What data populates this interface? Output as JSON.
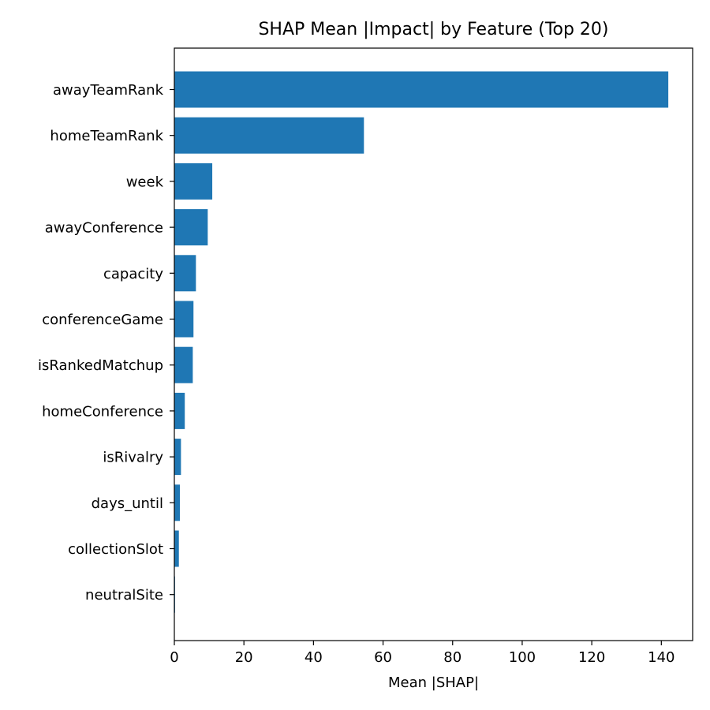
{
  "chart_data": {
    "type": "bar",
    "orientation": "horizontal",
    "title": "SHAP Mean |Impact| by Feature (Top 20)",
    "xlabel": "Mean |SHAP|",
    "ylabel": "",
    "categories": [
      "awayTeamRank",
      "homeTeamRank",
      "week",
      "awayConference",
      "capacity",
      "conferenceGame",
      "isRankedMatchup",
      "homeConference",
      "isRivalry",
      "days_until",
      "collectionSlot",
      "neutralSite"
    ],
    "values": [
      142.0,
      54.5,
      10.9,
      9.6,
      6.2,
      5.5,
      5.3,
      3.0,
      1.9,
      1.6,
      1.3,
      0.2
    ],
    "xlim": [
      0,
      149
    ],
    "xticks": [
      0,
      20,
      40,
      60,
      80,
      100,
      120,
      140
    ],
    "grid": false,
    "legend": "none",
    "bar_color": "#1f77b4"
  }
}
